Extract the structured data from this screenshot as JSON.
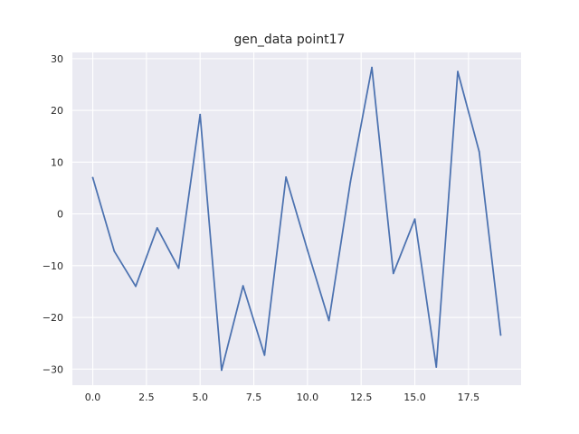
{
  "chart_data": {
    "type": "line",
    "title": "gen_data point17",
    "xlabel": "",
    "ylabel": "",
    "x": [
      0,
      1,
      2,
      3,
      4,
      5,
      6,
      7,
      8,
      9,
      10,
      11,
      12,
      13,
      14,
      15,
      16,
      17,
      18,
      19
    ],
    "series": [
      {
        "color": "#4C72B0",
        "values": [
          7.0,
          -7.2,
          -14.0,
          -2.7,
          -10.5,
          19.2,
          -30.2,
          -13.9,
          -27.3,
          7.1,
          -7.0,
          -20.6,
          6.2,
          28.3,
          -11.5,
          -1.0,
          -29.6,
          27.5,
          12.0,
          -23.4
        ]
      }
    ],
    "xlim": [
      -0.95,
      19.95
    ],
    "ylim": [
      -33.1,
      31.2
    ],
    "xticks": [
      0.0,
      2.5,
      5.0,
      7.5,
      10.0,
      12.5,
      15.0,
      17.5
    ],
    "xtick_labels": [
      "0.0",
      "2.5",
      "5.0",
      "7.5",
      "10.0",
      "12.5",
      "15.0",
      "17.5"
    ],
    "yticks": [
      -30,
      -20,
      -10,
      0,
      10,
      20,
      30
    ],
    "ytick_labels": [
      "−30",
      "−20",
      "−10",
      "0",
      "10",
      "20",
      "30"
    ],
    "grid": true,
    "background": "#EAEAF2"
  }
}
